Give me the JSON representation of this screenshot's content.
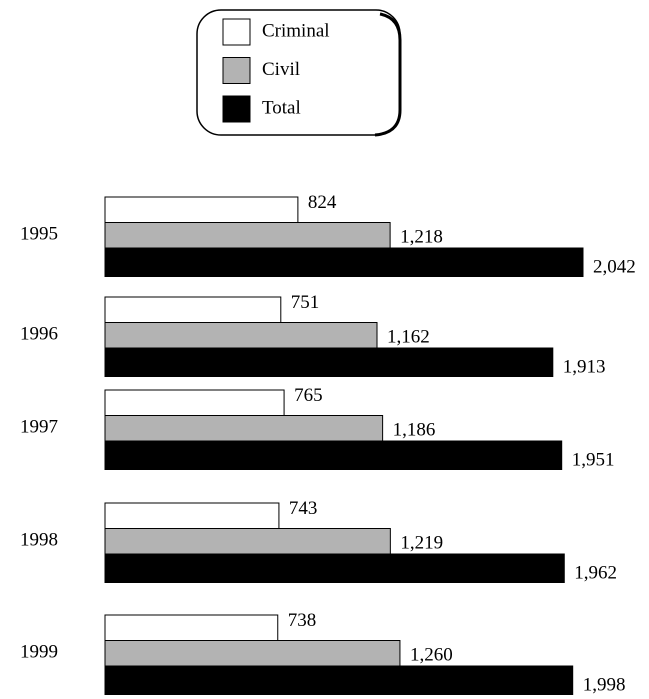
{
  "chart_data": {
    "type": "bar",
    "orientation": "horizontal",
    "legend": "top",
    "categories": [
      "1995",
      "1996",
      "1997",
      "1998",
      "1999"
    ],
    "series": [
      {
        "name": "Criminal",
        "color": "#ffffff",
        "values": [
          824,
          751,
          765,
          743,
          738
        ],
        "value_labels": [
          "824",
          "751",
          "765",
          "743",
          "738"
        ]
      },
      {
        "name": "Civil",
        "color": "#b3b3b3",
        "values": [
          1218,
          1162,
          1186,
          1219,
          1260
        ],
        "value_labels": [
          "1,218",
          "1,162",
          "1,186",
          "1,219",
          "1,260"
        ]
      },
      {
        "name": "Total",
        "color": "#000000",
        "values": [
          2042,
          1913,
          1951,
          1962,
          1998
        ],
        "value_labels": [
          "2,042",
          "1,913",
          "1,951",
          "1,962",
          "1,998"
        ]
      }
    ]
  }
}
